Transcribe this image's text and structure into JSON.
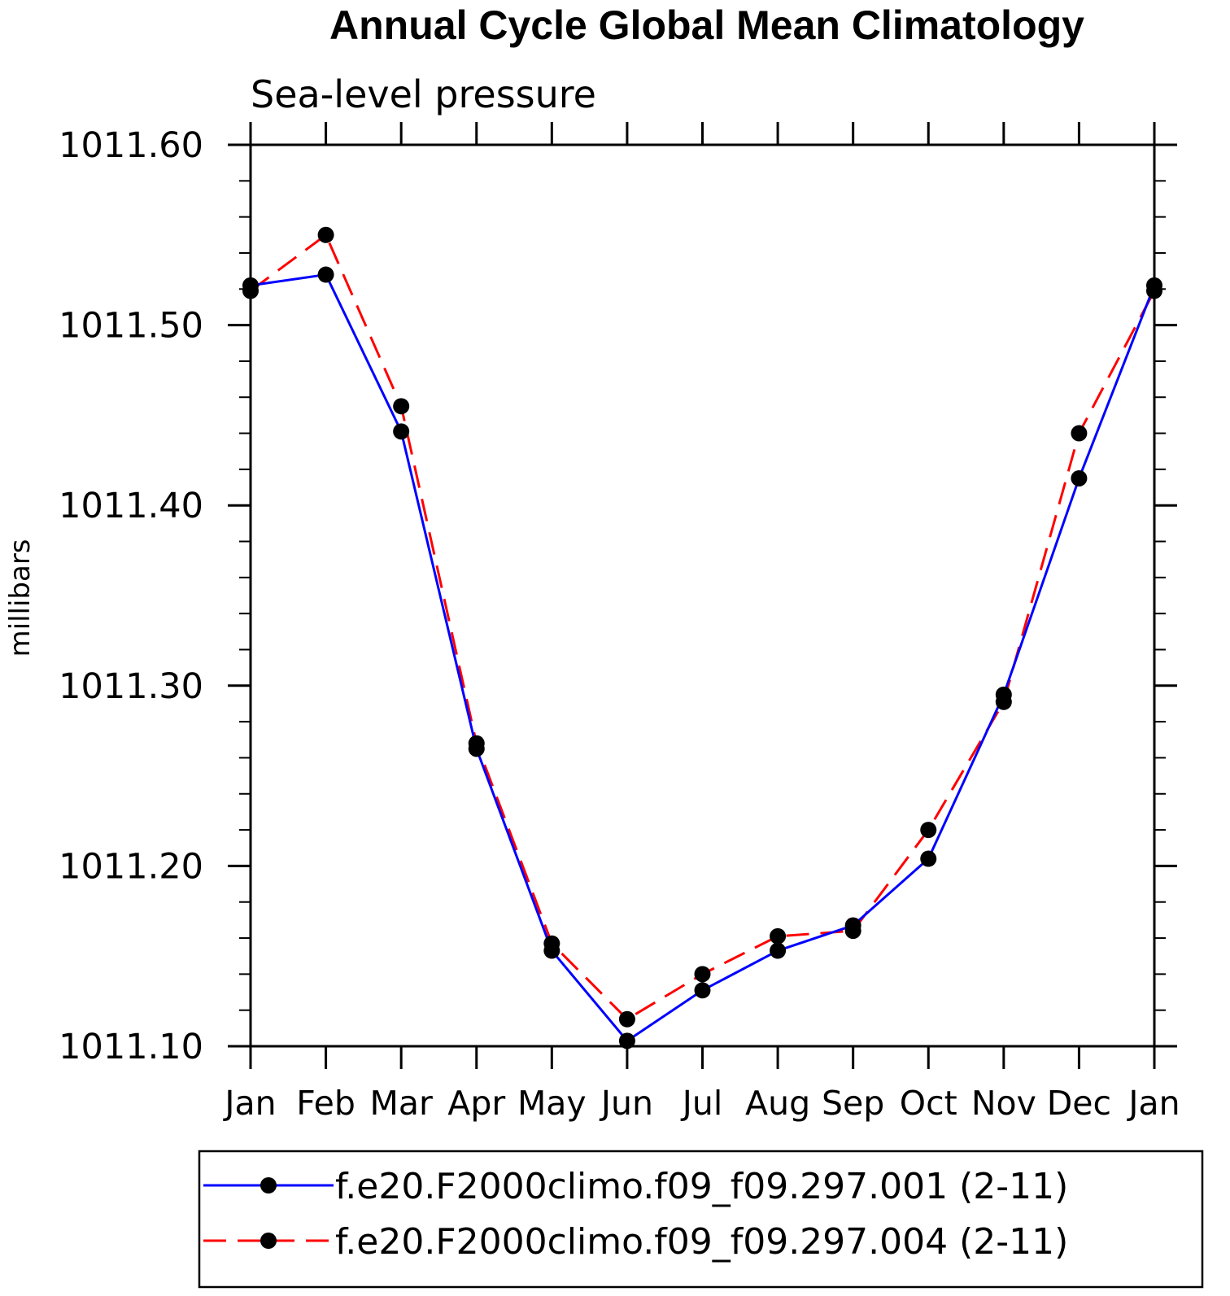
{
  "chart_data": {
    "type": "line",
    "title": "Annual Cycle Global Mean Climatology",
    "subtitle": "Sea-level pressure",
    "xlabel": "",
    "ylabel": "millibars",
    "categories": [
      "Jan",
      "Feb",
      "Mar",
      "Apr",
      "May",
      "Jun",
      "Jul",
      "Aug",
      "Sep",
      "Oct",
      "Nov",
      "Dec",
      "Jan"
    ],
    "ylim": [
      1011.1,
      1011.6
    ],
    "yticks": [
      1011.1,
      1011.2,
      1011.3,
      1011.4,
      1011.5,
      1011.6
    ],
    "ytick_labels": [
      "1011.10",
      "1011.20",
      "1011.30",
      "1011.40",
      "1011.50",
      "1011.60"
    ],
    "grid": false,
    "legend_position": "bottom",
    "series": [
      {
        "name": "f.e20.F2000climo.f09_f09.297.001 (2-11)",
        "color": "#0000ff",
        "dash": "solid",
        "marker": "circle",
        "values": [
          1011.522,
          1011.528,
          1011.441,
          1011.265,
          1011.153,
          1011.103,
          1011.131,
          1011.153,
          1011.167,
          1011.204,
          1011.295,
          1011.415,
          1011.522
        ]
      },
      {
        "name": "f.e20.F2000climo.f09_f09.297.004 (2-11)",
        "color": "#ff0000",
        "dash": "dashed",
        "marker": "circle",
        "values": [
          1011.519,
          1011.55,
          1011.455,
          1011.268,
          1011.157,
          1011.115,
          1011.14,
          1011.161,
          1011.164,
          1011.22,
          1011.291,
          1011.44,
          1011.519
        ]
      }
    ]
  }
}
